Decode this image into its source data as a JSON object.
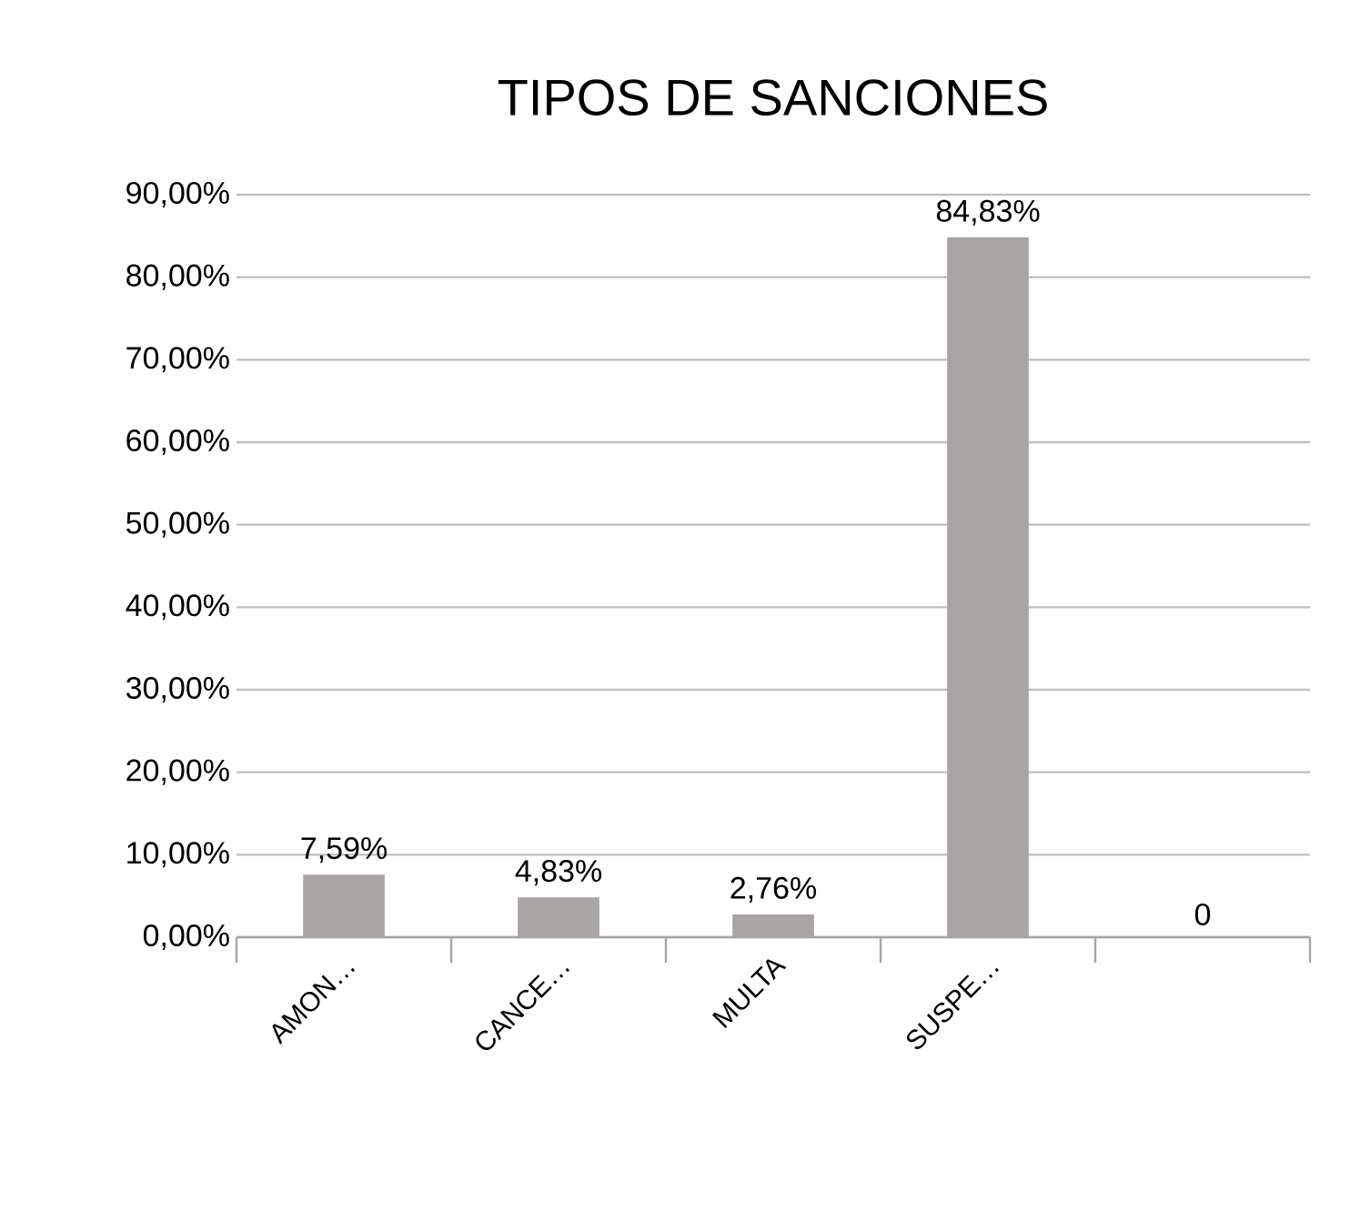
{
  "chart_data": {
    "type": "bar",
    "title": "TIPOS DE SANCIONES",
    "categories": [
      "AMON…",
      "CANCE…",
      "MULTA",
      "SUSPE…",
      null
    ],
    "values": [
      7.59,
      4.83,
      2.76,
      84.83,
      0
    ],
    "value_labels": [
      "7,59%",
      "4,83%",
      "2,76%",
      "84,83%",
      "0"
    ],
    "color": "#a8a4a4",
    "ylim": [
      0,
      90
    ],
    "yticks": [
      {
        "value": 0,
        "label": "0,00%"
      },
      {
        "value": 10,
        "label": "10,00%"
      },
      {
        "value": 20,
        "label": "20,00%"
      },
      {
        "value": 30,
        "label": "30,00%"
      },
      {
        "value": 40,
        "label": "40,00%"
      },
      {
        "value": 50,
        "label": "50,00%"
      },
      {
        "value": 60,
        "label": "60,00%"
      },
      {
        "value": 70,
        "label": "70,00%"
      },
      {
        "value": 80,
        "label": "80,00%"
      },
      {
        "value": 90,
        "label": "90,00%"
      }
    ],
    "grid": "y"
  }
}
